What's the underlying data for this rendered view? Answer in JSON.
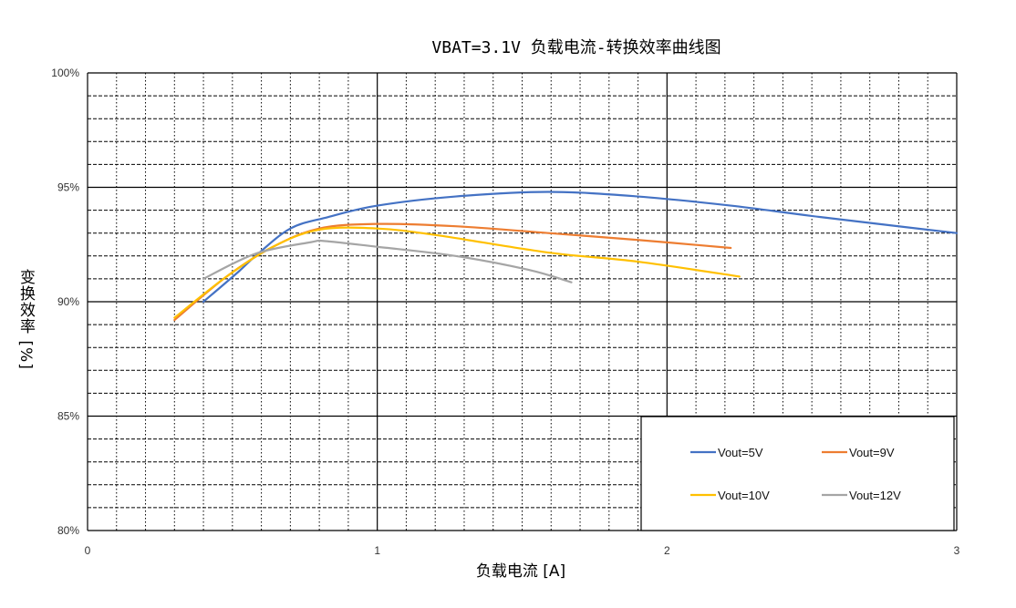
{
  "chart_data": {
    "type": "line",
    "title": "VBAT=3.1V 负载电流-转换效率曲线图",
    "xlabel": "负载电流 [A]",
    "ylabel": "变换效率 [%]",
    "xlim": [
      0,
      3
    ],
    "ylim": [
      80,
      100
    ],
    "x_ticks": [
      "0",
      "1",
      "2",
      "3"
    ],
    "y_ticks": [
      "80%",
      "85%",
      "90%",
      "95%",
      "100%"
    ],
    "grid": true,
    "legend_position": "bottom-right",
    "series": [
      {
        "name": "Vout=5V",
        "color": "#4472C4",
        "x": [
          0.4,
          0.52,
          0.58,
          0.7,
          0.83,
          1.0,
          1.27,
          1.59,
          1.9,
          2.22,
          2.53,
          3.0
        ],
        "y": [
          90.0,
          91.3,
          92.0,
          93.2,
          93.7,
          94.2,
          94.6,
          94.8,
          94.6,
          94.2,
          93.7,
          93.0
        ]
      },
      {
        "name": "Vout=9V",
        "color": "#ED7D31",
        "x": [
          0.3,
          0.48,
          0.64,
          0.8,
          1.0,
          1.27,
          1.59,
          1.9,
          2.22
        ],
        "y": [
          89.2,
          91.1,
          92.4,
          93.2,
          93.4,
          93.3,
          93.0,
          92.7,
          92.35
        ]
      },
      {
        "name": "Vout=10V",
        "color": "#FFC000",
        "x": [
          0.3,
          0.48,
          0.64,
          0.8,
          1.0,
          1.21,
          1.59,
          1.9,
          2.25
        ],
        "y": [
          89.3,
          91.1,
          92.4,
          93.15,
          93.2,
          92.9,
          92.15,
          91.75,
          91.1
        ]
      },
      {
        "name": "Vout=12V",
        "color": "#A5A5A5",
        "x": [
          0.4,
          0.58,
          0.77,
          0.82,
          1.0,
          1.27,
          1.52,
          1.67
        ],
        "y": [
          91.0,
          92.1,
          92.6,
          92.65,
          92.4,
          92.0,
          91.4,
          90.85
        ]
      }
    ]
  }
}
